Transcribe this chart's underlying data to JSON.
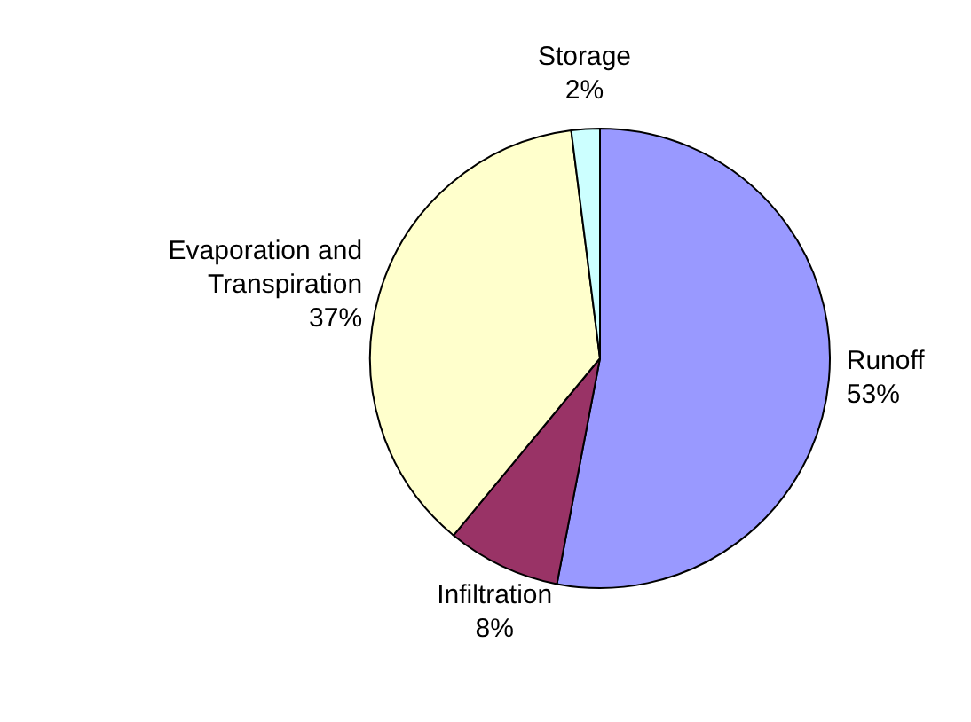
{
  "chart_data": {
    "type": "pie",
    "categories": [
      "Runoff",
      "Infiltration",
      "Evaporation and Transpiration",
      "Storage"
    ],
    "values": [
      53,
      8,
      37,
      2
    ],
    "value_labels": [
      "53%",
      "8%",
      "37%",
      "2%"
    ],
    "colors": [
      "#9999ff",
      "#993366",
      "#ffffcc",
      "#ccffff"
    ],
    "legend": false
  }
}
